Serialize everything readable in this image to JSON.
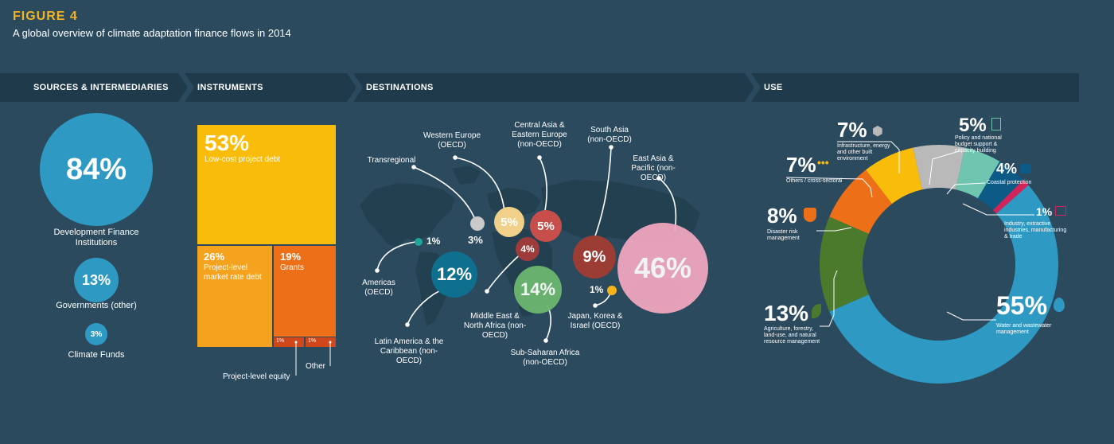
{
  "figure": {
    "label": "FIGURE 4",
    "title": "A global overview of climate adaptation finance flows in 2014"
  },
  "headers": {
    "sources": "SOURCES & INTERMEDIARIES",
    "instruments": "INSTRUMENTS",
    "destinations": "DESTINATIONS",
    "use": "USE"
  },
  "colors": {
    "background": "#2b4a5e",
    "band": "#1f3a4b",
    "bubble_blue": "#2e9ac4",
    "instrument_yellow": "#f9bc0b",
    "instrument_orange": "#f5a31f",
    "instrument_darkorange": "#ed7018",
    "instrument_red": "#d0471c"
  },
  "chart_data": [
    {
      "type": "bubble",
      "section": "sources",
      "items": [
        {
          "pct": "84%",
          "value": 84,
          "label": "Development Finance Institutions"
        },
        {
          "pct": "13%",
          "value": 13,
          "label": "Governments (other)"
        },
        {
          "pct": "3%",
          "value": 3,
          "label": "Climate Funds"
        }
      ]
    },
    {
      "type": "treemap",
      "section": "instruments",
      "items": [
        {
          "pct": "53%",
          "value": 53,
          "label": "Low-cost project debt",
          "color": "#f9bc0b"
        },
        {
          "pct": "26%",
          "value": 26,
          "label": "Project-level market rate debt",
          "color": "#f5a31f"
        },
        {
          "pct": "19%",
          "value": 19,
          "label": "Grants",
          "color": "#ed7018"
        },
        {
          "pct": "1%",
          "value": 1,
          "label": "Project-level equity",
          "color": "#d0471c"
        },
        {
          "pct": "1%",
          "value": 1,
          "label": "Other",
          "color": "#d0471c"
        }
      ]
    },
    {
      "type": "bubble",
      "section": "destinations",
      "items": [
        {
          "pct": "3%",
          "value": 3,
          "label": "Transregional",
          "color": "#c9c9c9"
        },
        {
          "pct": "5%",
          "value": 5,
          "label": "Western Europe (OECD)",
          "color": "#f1d18a"
        },
        {
          "pct": "5%",
          "value": 5,
          "label": "Central Asia & Eastern Europe (non-OECD)",
          "color": "#c84e4b"
        },
        {
          "pct": "9%",
          "value": 9,
          "label": "South Asia (non-OECD)",
          "color": "#9c3d35"
        },
        {
          "pct": "46%",
          "value": 46,
          "label": "East Asia & Pacific (non-OECD)",
          "color": "#f2a8c0"
        },
        {
          "pct": "1%",
          "value": 1,
          "label": "Americas (OECD)",
          "color": "#1fa59a"
        },
        {
          "pct": "12%",
          "value": 12,
          "label": "Latin America & the Caribbean (non-OECD)",
          "color": "#0f6f8f"
        },
        {
          "pct": "4%",
          "value": 4,
          "label": "Middle East & North Africa (non-OECD)",
          "color": "#9e3b3b"
        },
        {
          "pct": "14%",
          "value": 14,
          "label": "Sub-Saharan Africa (non-OECD)",
          "color": "#6cb66f"
        },
        {
          "pct": "1%",
          "value": 1,
          "label": "Japan, Korea & Israel (OECD)",
          "color": "#f6b418"
        }
      ]
    },
    {
      "type": "pie",
      "section": "use",
      "items": [
        {
          "pct": "55%",
          "value": 55,
          "label": "Water and wastewater management",
          "color": "#2e9ac4",
          "icon": "water-drop-icon"
        },
        {
          "pct": "13%",
          "value": 13,
          "label": "Agriculture, forestry, land-use, and natural resource management",
          "color": "#4c7a2d",
          "icon": "leaf-icon"
        },
        {
          "pct": "8%",
          "value": 8,
          "label": "Disaster risk management",
          "color": "#ed7018",
          "icon": "shield-icon"
        },
        {
          "pct": "7%",
          "value": 7,
          "label": "Others / cross-sectoral",
          "color": "#f9bc0b",
          "icon": "dots-icon"
        },
        {
          "pct": "7%",
          "value": 7,
          "label": "Infrastructure, energy and other built environment",
          "color": "#b9b9b9",
          "icon": "dome-icon"
        },
        {
          "pct": "5%",
          "value": 5,
          "label": "Policy and national budget support & capacity building",
          "color": "#6fc5b0",
          "icon": "document-icon"
        },
        {
          "pct": "4%",
          "value": 4,
          "label": "Coastal protection",
          "color": "#0c5a86",
          "icon": "wave-icon"
        },
        {
          "pct": "1%",
          "value": 1,
          "label": "Industry, extractive industries, manufacturing & trade",
          "color": "#d0245a",
          "icon": "factory-icon"
        }
      ]
    }
  ]
}
